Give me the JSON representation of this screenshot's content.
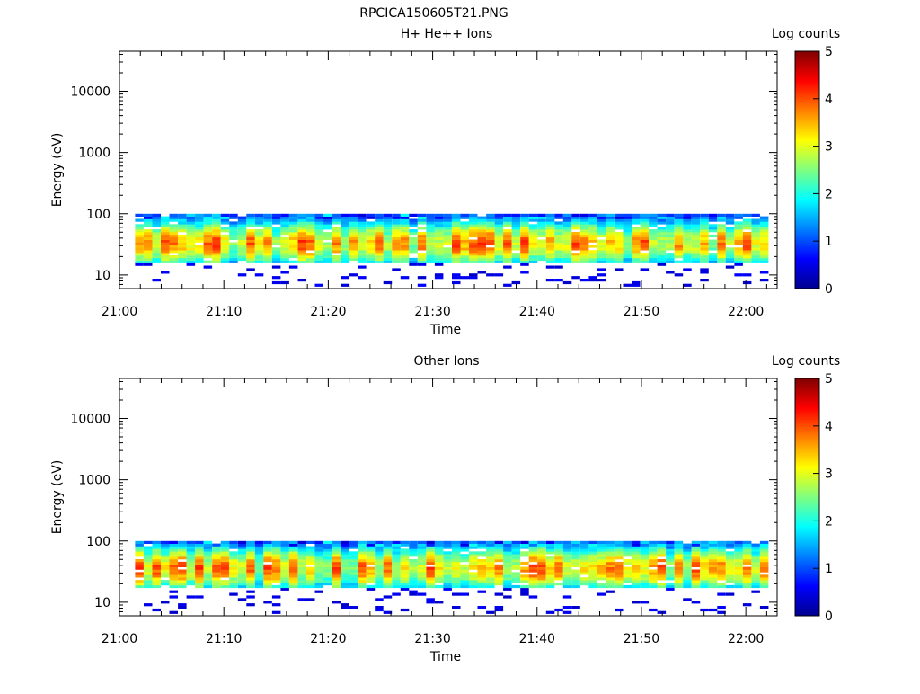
{
  "figure": {
    "title": "RPCICA150605T21.PNG"
  },
  "chart_data": [
    {
      "type": "heatmap",
      "title": "H+ He++ Ions",
      "xlabel": "Time",
      "ylabel": "Energy (eV)",
      "x_ticks": [
        "21:00",
        "21:10",
        "21:20",
        "21:30",
        "21:40",
        "21:50",
        "22:00"
      ],
      "y_scale": "log",
      "y_ticks": [
        "10",
        "100",
        "1000",
        "10000"
      ],
      "colorbar": {
        "label": "Log counts",
        "min": 0,
        "max": 5,
        "ticks": [
          "0",
          "1",
          "2",
          "3",
          "4",
          "5"
        ]
      },
      "time_range_minutes": [
        0,
        63
      ],
      "energy_range_eV": [
        6,
        45000
      ],
      "data_description": "Ion flux concentrated between ~15 and ~100 eV, peak ~25-45 eV",
      "band_eV": [
        15,
        100
      ],
      "peak_eV": 33
    },
    {
      "type": "heatmap",
      "title": "Other Ions",
      "xlabel": "Time",
      "ylabel": "Energy (eV)",
      "x_ticks": [
        "21:00",
        "21:10",
        "21:20",
        "21:30",
        "21:40",
        "21:50",
        "22:00"
      ],
      "y_scale": "log",
      "y_ticks": [
        "10",
        "100",
        "1000",
        "10000"
      ],
      "colorbar": {
        "label": "Log counts",
        "min": 0,
        "max": 5,
        "ticks": [
          "0",
          "1",
          "2",
          "3",
          "4",
          "5"
        ]
      },
      "time_range_minutes": [
        0,
        63
      ],
      "energy_range_eV": [
        6,
        45000
      ],
      "data_description": "Ion flux concentrated between ~18 and ~100 eV, peak ~28-45 eV",
      "band_eV": [
        18,
        100
      ],
      "peak_eV": 36
    }
  ]
}
